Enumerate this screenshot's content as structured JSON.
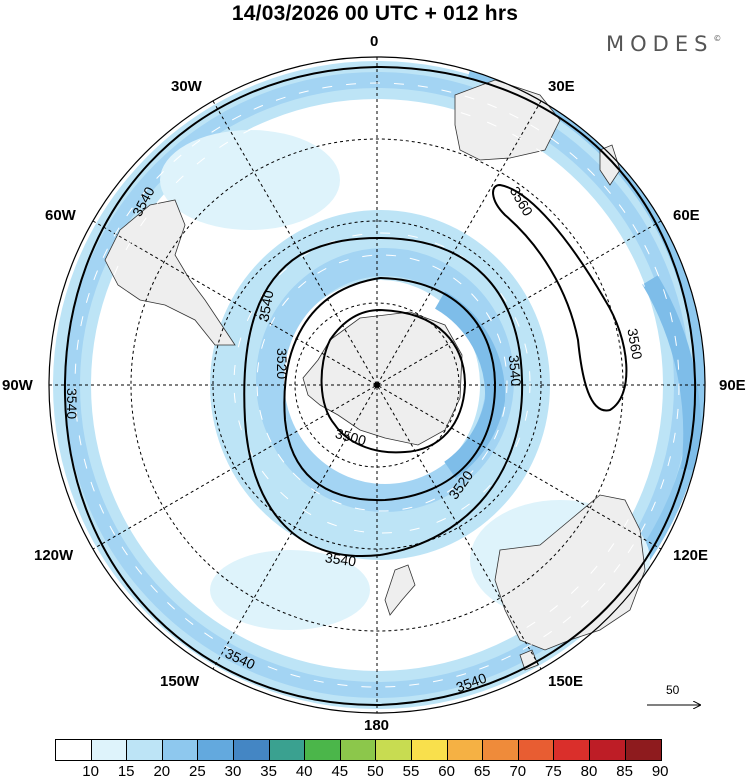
{
  "title": "14/03/2026  00 UTC  + 012 hrs",
  "brand": {
    "name": "MODES",
    "mark": "©"
  },
  "meridians": {
    "top": "0",
    "bottom": "180",
    "left": "90W",
    "right": "90E",
    "nw1": "30W",
    "nw2": "60W",
    "ne1": "30E",
    "ne2": "60E",
    "sw1": "120W",
    "sw2": "150W",
    "se1": "120E",
    "se2": "150E"
  },
  "contour_labels": [
    "3540",
    "3540",
    "3540",
    "3540",
    "3540",
    "3540",
    "3540",
    "3520",
    "3520",
    "3500",
    "3560",
    "3560",
    "3540"
  ],
  "reference_vector": "50",
  "colorbar": {
    "labels": [
      "10",
      "15",
      "20",
      "25",
      "30",
      "35",
      "40",
      "45",
      "50",
      "55",
      "60",
      "65",
      "70",
      "75",
      "80",
      "85",
      "90"
    ],
    "colors": [
      "#ffffff",
      "#def3fb",
      "#bde4f6",
      "#8ec8ee",
      "#63a9de",
      "#4486c4",
      "#3aa190",
      "#4bb64a",
      "#8cc74b",
      "#c8dc51",
      "#f9e04c",
      "#f5b144",
      "#ef8b3a",
      "#e85d32",
      "#da2f2b",
      "#be1d26",
      "#8e1b1e"
    ]
  },
  "colors": {
    "jet_light": "#d6eefa",
    "jet_mid": "#a8d7f2",
    "jet_strong": "#7ebde9",
    "land": "#eeeeee"
  }
}
